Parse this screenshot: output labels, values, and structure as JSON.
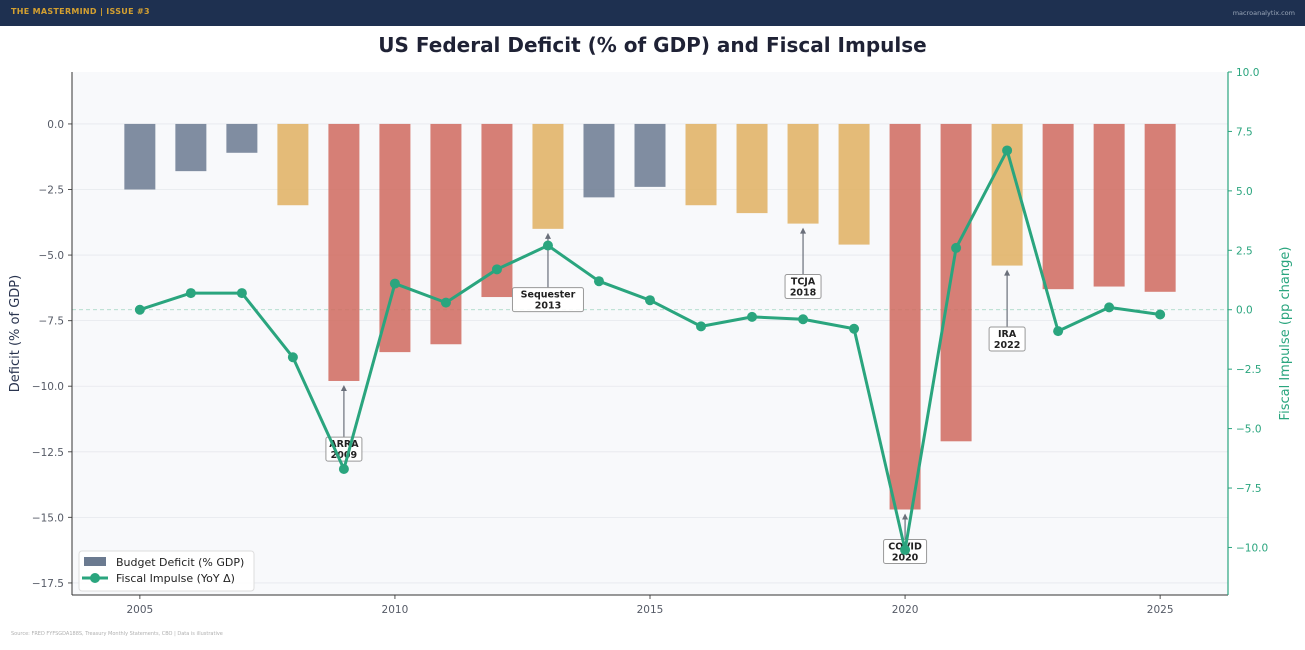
{
  "header": {
    "brand": "THE MASTERMIND  |  ISSUE #3",
    "site": "macroanalytix.com"
  },
  "footer": {
    "source": "Source: FRED FYFSGDA188S, Treasury Monthly Statements, CBO  |  Data is illustrative"
  },
  "chart_data": {
    "type": "bar+line",
    "title": "US Federal Deficit (% of GDP) and Fiscal Impulse",
    "xlabel": "",
    "ylabel": "Deficit (% of GDP)",
    "ylabel_right": "Fiscal Impulse (pp change)",
    "x": [
      2005,
      2006,
      2007,
      2008,
      2009,
      2010,
      2011,
      2012,
      2013,
      2014,
      2015,
      2016,
      2017,
      2018,
      2019,
      2020,
      2021,
      2022,
      2023,
      2024,
      2025
    ],
    "xlim": [
      2003.67,
      2026.33
    ],
    "ylim": [
      -17.96,
      1.98
    ],
    "ylim_right": [
      -12.0,
      10.0
    ],
    "x_ticks": [
      "2005",
      "2010",
      "2015",
      "2020",
      "2025"
    ],
    "y_ticks": [
      "0.0",
      "−2.5",
      "−5.0",
      "−7.5",
      "−10.0",
      "−12.5",
      "−15.0",
      "−17.5"
    ],
    "y_tick_values": [
      0,
      -2.5,
      -5,
      -7.5,
      -10,
      -12.5,
      -15,
      -17.5
    ],
    "y_ticks_right": [
      "10.0",
      "7.5",
      "5.0",
      "2.5",
      "0.0",
      "−2.5",
      "−5.0",
      "−7.5",
      "−10.0"
    ],
    "y_tick_values_right": [
      10,
      7.5,
      5,
      2.5,
      0,
      -2.5,
      -5,
      -7.5,
      -10
    ],
    "series": [
      {
        "name": "Budget Deficit (% GDP)",
        "type": "bar",
        "axis": "left",
        "values": [
          -2.5,
          -1.8,
          -1.1,
          -3.1,
          -9.8,
          -8.7,
          -8.4,
          -6.6,
          -4.0,
          -2.8,
          -2.4,
          -3.1,
          -3.4,
          -3.8,
          -4.6,
          -14.7,
          -12.1,
          -5.4,
          -6.3,
          -6.2,
          -6.4
        ],
        "color_rule": "gray if |deficit|<3, amber if 3–6, red if >6"
      },
      {
        "name": "Fiscal Impulse (YoY Δ)",
        "type": "line",
        "axis": "right",
        "values": [
          0.0,
          0.7,
          0.7,
          -2.0,
          -6.7,
          1.1,
          0.3,
          1.7,
          2.7,
          1.2,
          0.4,
          -0.7,
          -0.3,
          -0.4,
          -0.8,
          -10.1,
          2.6,
          6.7,
          -0.9,
          0.1,
          -0.2
        ]
      }
    ],
    "annotations": [
      {
        "label": [
          "ARRA",
          "2009"
        ],
        "year": 2009,
        "target": -9.8,
        "text_y": -12.4
      },
      {
        "label": [
          "Sequester",
          "2013"
        ],
        "year": 2013,
        "target": -4.0,
        "text_y": -6.7
      },
      {
        "label": [
          "TCJA",
          "2018"
        ],
        "year": 2018,
        "target": -3.8,
        "text_y": -6.2
      },
      {
        "label": [
          "COVID",
          "2020"
        ],
        "year": 2020,
        "target": -14.7,
        "text_y": -16.3
      },
      {
        "label": [
          "IRA",
          "2022"
        ],
        "year": 2022,
        "target": -5.4,
        "text_y": -8.2
      }
    ],
    "legend_position": "lower-left",
    "grid": true,
    "colors": {
      "gray": "#6b7a90",
      "amber": "#e0b060",
      "red": "#d06a5e",
      "line": "#2aa57e",
      "plot_bg": "#f8f9fb"
    }
  }
}
